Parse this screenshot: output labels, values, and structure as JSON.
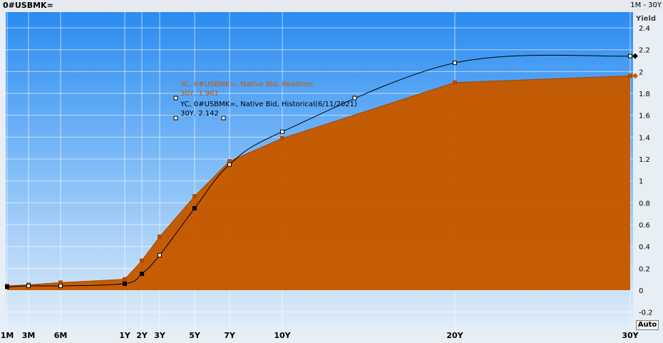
{
  "window": {
    "title": "0#USBMK=",
    "range": "1M - 30Y",
    "auto_button": "Auto"
  },
  "chart_data": {
    "type": "area",
    "ylabel": "Yield",
    "ylim": [
      -0.2,
      2.4
    ],
    "yticks": [
      -0.2,
      0,
      0.2,
      0.4,
      0.6,
      0.8,
      1,
      1.2,
      1.4,
      1.6,
      1.8,
      2,
      2.2,
      2.4
    ],
    "grid": true,
    "categories": [
      "1M",
      "3M",
      "6M",
      "1Y",
      "2Y",
      "3Y",
      "5Y",
      "7Y",
      "10Y",
      "20Y",
      "30Y"
    ],
    "x_tenor_labels": [
      "1M",
      "3M",
      "6M",
      "1Y",
      "2Y",
      "3Y",
      "5Y",
      "7Y",
      "10Y",
      "20Y",
      "30Y"
    ],
    "series": [
      {
        "name": "YC, 0#USBMK=, Native Bid, Realtime",
        "last_value_label": "30Y, 1.961",
        "color": "#c55a00",
        "values": [
          0.04,
          0.05,
          0.07,
          0.1,
          0.27,
          0.49,
          0.86,
          1.18,
          1.39,
          1.9,
          1.961
        ]
      },
      {
        "name": "YC, 0#USBMK=, Native Bid, Historical(6/11/2021)",
        "last_value_label": "30Y, 2.142",
        "color": "#000000",
        "values": [
          0.03,
          0.04,
          0.04,
          0.06,
          0.15,
          0.32,
          0.75,
          1.15,
          1.45,
          2.08,
          2.142
        ]
      }
    ]
  }
}
